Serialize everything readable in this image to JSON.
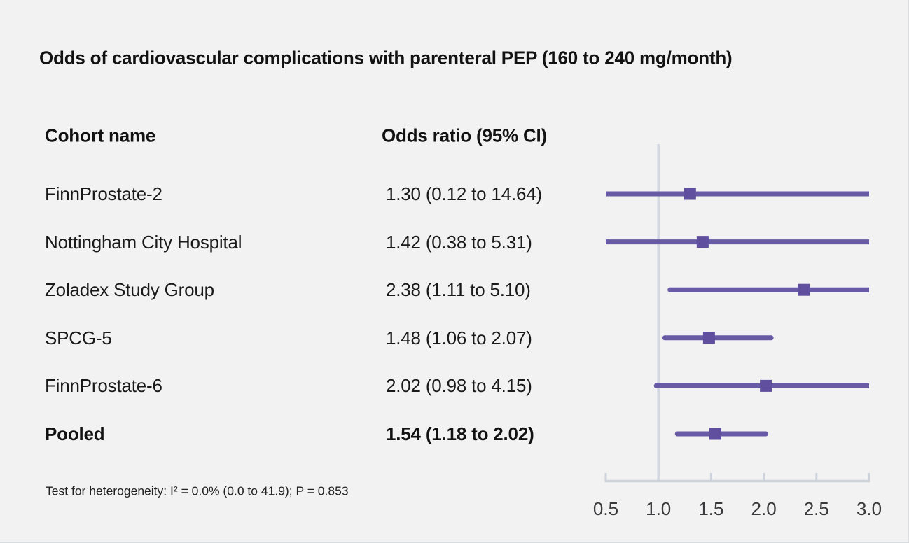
{
  "title": "Odds of cardiovascular complications with parenteral PEP (160 to 240 mg/month)",
  "columns": {
    "cohort": "Cohort name",
    "odds": "Odds ratio (95% CI)"
  },
  "footnote": "Test for heterogeneity: I² = 0.0% (0.0 to 41.9); P = 0.853",
  "colors": {
    "background": "#f2f2f2",
    "ci_line": "#685aa5",
    "marker": "#5f4f9e",
    "reference_line": "#d3d7df",
    "axis": "#ced3db",
    "tick_label": "#3a3a3c",
    "text": "#1a1a1a"
  },
  "chart_data": {
    "type": "forest",
    "title": "Odds of cardiovascular complications with parenteral PEP (160 to 240 mg/month)",
    "xlabel": "",
    "ylabel": "",
    "xlim": [
      0.5,
      3.0
    ],
    "xticks": [
      "0.5",
      "1.0",
      "1.5",
      "2.0",
      "2.5",
      "3.0"
    ],
    "reference_line": 1.0,
    "grid": false,
    "legend": "none",
    "rows": [
      {
        "cohort": "FinnProstate-2",
        "or": 1.3,
        "ci_low": 0.12,
        "ci_high": 14.64,
        "label": "1.30 (0.12 to 14.64)",
        "bold": false
      },
      {
        "cohort": "Nottingham City Hospital",
        "or": 1.42,
        "ci_low": 0.38,
        "ci_high": 5.31,
        "label": "1.42 (0.38 to 5.31)",
        "bold": false
      },
      {
        "cohort": "Zoladex Study Group",
        "or": 2.38,
        "ci_low": 1.11,
        "ci_high": 5.1,
        "label": "2.38 (1.11 to 5.10)",
        "bold": false
      },
      {
        "cohort": "SPCG-5",
        "or": 1.48,
        "ci_low": 1.06,
        "ci_high": 2.07,
        "label": "1.48 (1.06 to 2.07)",
        "bold": false
      },
      {
        "cohort": "FinnProstate-6",
        "or": 2.02,
        "ci_low": 0.98,
        "ci_high": 4.15,
        "label": "2.02 (0.98 to 4.15)",
        "bold": false
      },
      {
        "cohort": "Pooled",
        "or": 1.54,
        "ci_low": 1.18,
        "ci_high": 2.02,
        "label": "1.54 (1.18 to 2.02)",
        "bold": true
      }
    ],
    "heterogeneity": "Test for heterogeneity: I² = 0.0% (0.0 to 41.9); P = 0.853"
  }
}
